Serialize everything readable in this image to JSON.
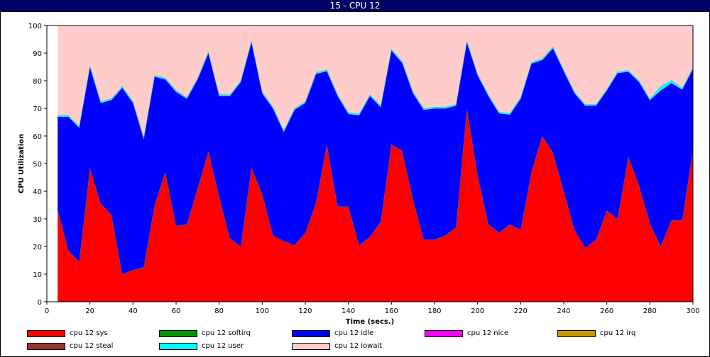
{
  "window": {
    "title": "15 - CPU 12"
  },
  "chart_data": {
    "type": "area",
    "stacked": true,
    "xlabel": "Time (secs.)",
    "ylabel": "CPU Utilization",
    "xlim": [
      0,
      300
    ],
    "ylim": [
      0,
      100
    ],
    "xticks": [
      0,
      20,
      40,
      60,
      80,
      100,
      120,
      140,
      160,
      180,
      200,
      220,
      240,
      260,
      280,
      300
    ],
    "yticks": [
      0,
      10,
      20,
      30,
      40,
      50,
      60,
      70,
      80,
      90,
      100
    ],
    "legend_position": "bottom",
    "x": [
      5,
      10,
      15,
      20,
      25,
      30,
      35,
      40,
      45,
      50,
      55,
      60,
      65,
      70,
      75,
      80,
      85,
      90,
      95,
      100,
      105,
      110,
      115,
      120,
      125,
      130,
      135,
      140,
      145,
      150,
      155,
      160,
      165,
      170,
      175,
      180,
      185,
      190,
      195,
      200,
      205,
      210,
      215,
      220,
      225,
      230,
      235,
      240,
      245,
      250,
      255,
      260,
      265,
      270,
      275,
      280,
      285,
      290,
      295,
      300
    ],
    "series": [
      {
        "name": "cpu 12 sys",
        "color": "#ff0000",
        "values": [
          33.5,
          18.5,
          14.5,
          48.5,
          35.5,
          31.5,
          10,
          11.5,
          12.5,
          35,
          47,
          27.5,
          28,
          41,
          54.5,
          38,
          23,
          20,
          48.5,
          39,
          24,
          22,
          20.5,
          25,
          36,
          57,
          34.5,
          34.5,
          20.5,
          23.5,
          29,
          57,
          54.5,
          37,
          22.5,
          22.5,
          24,
          27,
          70,
          46,
          28,
          25,
          28,
          26,
          47,
          60,
          54,
          40,
          26,
          19.5,
          22.5,
          33,
          30,
          52.5,
          42,
          28.5,
          20,
          29.5,
          29.5,
          55
        ]
      },
      {
        "name": "cpu 12 softirq",
        "color": "#009900",
        "values": [
          0,
          0,
          0,
          0,
          0,
          0,
          0,
          0,
          0,
          0,
          0,
          0,
          0,
          0,
          0,
          0,
          0,
          0,
          0,
          0,
          0,
          0,
          0,
          0,
          0,
          0,
          0,
          0,
          0,
          0,
          0,
          0,
          0,
          0,
          0,
          0,
          0,
          0,
          0,
          0,
          0,
          0,
          0,
          0,
          0,
          0,
          0,
          0,
          0,
          0,
          0,
          0,
          0,
          0,
          0,
          0,
          0,
          0,
          0,
          0
        ]
      },
      {
        "name": "cpu 12 idle",
        "color": "#0000ff",
        "values": [
          33.5,
          48.5,
          48.5,
          36.5,
          36.5,
          41.5,
          67.5,
          60.5,
          46.5,
          46.5,
          33.5,
          48.5,
          45.5,
          39.5,
          35.5,
          36.5,
          51.5,
          59.5,
          45.5,
          36.5,
          46,
          39.5,
          49,
          47,
          46.5,
          26.5,
          40,
          33.5,
          47,
          51,
          41.5,
          34,
          32,
          38.5,
          47,
          47.5,
          46,
          44,
          24,
          36,
          46.5,
          43.2,
          39.8,
          47.5,
          39.2,
          27.5,
          37.8,
          43.5,
          49.5,
          51.5,
          48.5,
          43.5,
          52.8,
          30.8,
          37.5,
          44.5,
          56.5,
          49.7,
          47.3,
          29.3
        ]
      },
      {
        "name": "cpu 12 nice",
        "color": "#ff00ff",
        "values": [
          0,
          0,
          0,
          0,
          0,
          0,
          0,
          0,
          0,
          0,
          0,
          0,
          0,
          0,
          0,
          0,
          0,
          0,
          0,
          0,
          0,
          0,
          0,
          0,
          0,
          0,
          0,
          0,
          0,
          0,
          0,
          0,
          0,
          0,
          0,
          0,
          0,
          0,
          0,
          0,
          0,
          0,
          0,
          0,
          0,
          0,
          0,
          0,
          0,
          0,
          0,
          0,
          0,
          0,
          0,
          0,
          0,
          0,
          0,
          0
        ]
      },
      {
        "name": "cpu 12 irq",
        "color": "#cc9900",
        "values": [
          0,
          0,
          0,
          0,
          0,
          0,
          0,
          0,
          0,
          0,
          0,
          0,
          0,
          0,
          0,
          0,
          0,
          0,
          0,
          0,
          0,
          0,
          0,
          0,
          0,
          0,
          0,
          0,
          0,
          0,
          0,
          0,
          0,
          0,
          0,
          0,
          0,
          0,
          0,
          0,
          0,
          0,
          0,
          0,
          0,
          0,
          0,
          0,
          0,
          0,
          0,
          0,
          0,
          0,
          0,
          0,
          0,
          0,
          0,
          0
        ]
      },
      {
        "name": "cpu 12 steal",
        "color": "#993333",
        "values": [
          0,
          0,
          0,
          0,
          0,
          0,
          0,
          0,
          0,
          0,
          0,
          0,
          0,
          0,
          0,
          0,
          0,
          0,
          0,
          0,
          0,
          0,
          0,
          0,
          0,
          0,
          0,
          0,
          0,
          0,
          0,
          0,
          0,
          0,
          0,
          0,
          0,
          0,
          0,
          0,
          0,
          0,
          0,
          0,
          0,
          0,
          0,
          0,
          0,
          0,
          0,
          0,
          0,
          0,
          0,
          0,
          0,
          0,
          0,
          0
        ]
      },
      {
        "name": "cpu 12 user",
        "color": "#00ffff",
        "values": [
          0.5,
          0.5,
          0.5,
          0.5,
          0.5,
          0.5,
          0.5,
          0.5,
          0.5,
          0.5,
          0.5,
          0.5,
          0.5,
          0.5,
          0.5,
          0.5,
          0.5,
          0.5,
          0.5,
          0.5,
          0.5,
          0.5,
          0.5,
          0.5,
          0.5,
          0.5,
          0.5,
          0.5,
          0.5,
          0.5,
          0.5,
          0.5,
          0.5,
          0.5,
          0.5,
          0.5,
          0.5,
          0.5,
          0.5,
          0.5,
          0.5,
          0.5,
          0.5,
          0.5,
          0.5,
          0.5,
          0.5,
          0.5,
          0.5,
          0.5,
          0.5,
          0.5,
          0.5,
          0.5,
          0.5,
          0.5,
          1.5,
          1,
          0.5,
          0.5
        ]
      },
      {
        "name": "cpu 12 iowait",
        "color": "#ffcccc",
        "values": [
          32.5,
          32.5,
          36.5,
          14.5,
          27.5,
          26.5,
          22,
          27.5,
          40.5,
          18,
          19,
          23.5,
          26,
          19,
          9.5,
          25,
          25,
          20,
          5.5,
          24,
          29.5,
          38,
          30,
          27.5,
          17,
          16,
          25,
          31.5,
          32,
          25,
          29,
          8.5,
          13,
          24,
          30,
          29.5,
          29.5,
          28.5,
          5.5,
          17.5,
          25,
          31.3,
          31.7,
          26,
          13.3,
          12,
          7.7,
          16,
          24,
          28.5,
          28.5,
          23,
          16.7,
          16.2,
          20,
          26.5,
          22,
          19.8,
          22.7,
          15.2
        ]
      }
    ],
    "grid": false
  }
}
